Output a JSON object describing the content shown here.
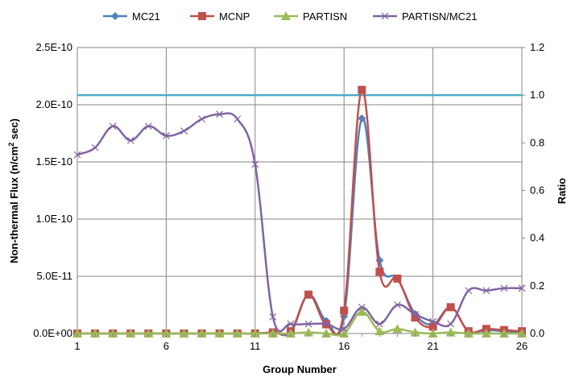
{
  "chart_data": {
    "type": "line",
    "x": [
      1,
      2,
      3,
      4,
      5,
      6,
      7,
      8,
      9,
      10,
      11,
      12,
      13,
      14,
      15,
      16,
      17,
      18,
      19,
      20,
      21,
      22,
      23,
      24,
      25,
      26
    ],
    "xticks": [
      1,
      6,
      11,
      16,
      21,
      26
    ],
    "xlabel": "Group Number",
    "ylabel_left_main": "Non-thermal Flux (n/cm",
    "ylabel_left_sup": "2",
    "ylabel_left_tail": " sec)",
    "ylabel_right": "Ratio",
    "ylim_left": [
      0,
      2.5e-10
    ],
    "ylim_right": [
      0,
      1.2
    ],
    "yticks_left": [
      "0.0E+00",
      "5.0E-11",
      "1.0E-10",
      "1.5E-10",
      "2.0E-10",
      "2.5E-10"
    ],
    "yticks_right": [
      "0.0",
      "0.2",
      "0.4",
      "0.6",
      "0.8",
      "1.0",
      "1.2"
    ],
    "grid": true,
    "legend_position": "top",
    "reference_line": {
      "axis": "right",
      "value": 1.0,
      "color": "#4bacc6"
    },
    "series": [
      {
        "name": "MC21",
        "axis": "left",
        "marker": "diamond",
        "color": "#4f81bd",
        "values": [
          0,
          0,
          0,
          0,
          0,
          0,
          0,
          0,
          0,
          0,
          0,
          1e-12,
          1e-12,
          3.4e-11,
          1.1e-11,
          1.5e-11,
          1.88e-10,
          6.4e-11,
          4.8e-11,
          1.7e-11,
          8e-12,
          2.3e-11,
          2e-12,
          3e-12,
          2e-12,
          1e-12
        ]
      },
      {
        "name": "MCNP",
        "axis": "left",
        "marker": "square",
        "color": "#c0504d",
        "values": [
          0,
          0,
          0,
          0,
          0,
          0,
          0,
          0,
          0,
          0,
          0,
          1e-12,
          2e-12,
          3.4e-11,
          8e-12,
          2e-11,
          2.13e-10,
          5.4e-11,
          4.8e-11,
          1.4e-11,
          6e-12,
          2.3e-11,
          2e-12,
          4e-12,
          3e-12,
          2e-12
        ]
      },
      {
        "name": "PARTISN",
        "axis": "left",
        "marker": "triangle",
        "color": "#9bbb59",
        "values": [
          0,
          0,
          0,
          0,
          0,
          0,
          0,
          0,
          0,
          0,
          0,
          0,
          0,
          1e-12,
          0,
          0,
          1.9e-11,
          2e-12,
          4e-12,
          1e-12,
          0,
          1e-12,
          0,
          0,
          0,
          0
        ]
      },
      {
        "name": "PARTISN/MC21",
        "axis": "right",
        "marker": "x",
        "color": "#8064a2",
        "values": [
          0.75,
          0.78,
          0.87,
          0.81,
          0.87,
          0.83,
          0.85,
          0.9,
          0.92,
          0.9,
          0.71,
          0.07,
          0.04,
          0.04,
          0.04,
          0.02,
          0.11,
          0.04,
          0.12,
          0.08,
          0.05,
          0.04,
          0.18,
          0.18,
          0.19,
          0.19
        ]
      }
    ]
  }
}
